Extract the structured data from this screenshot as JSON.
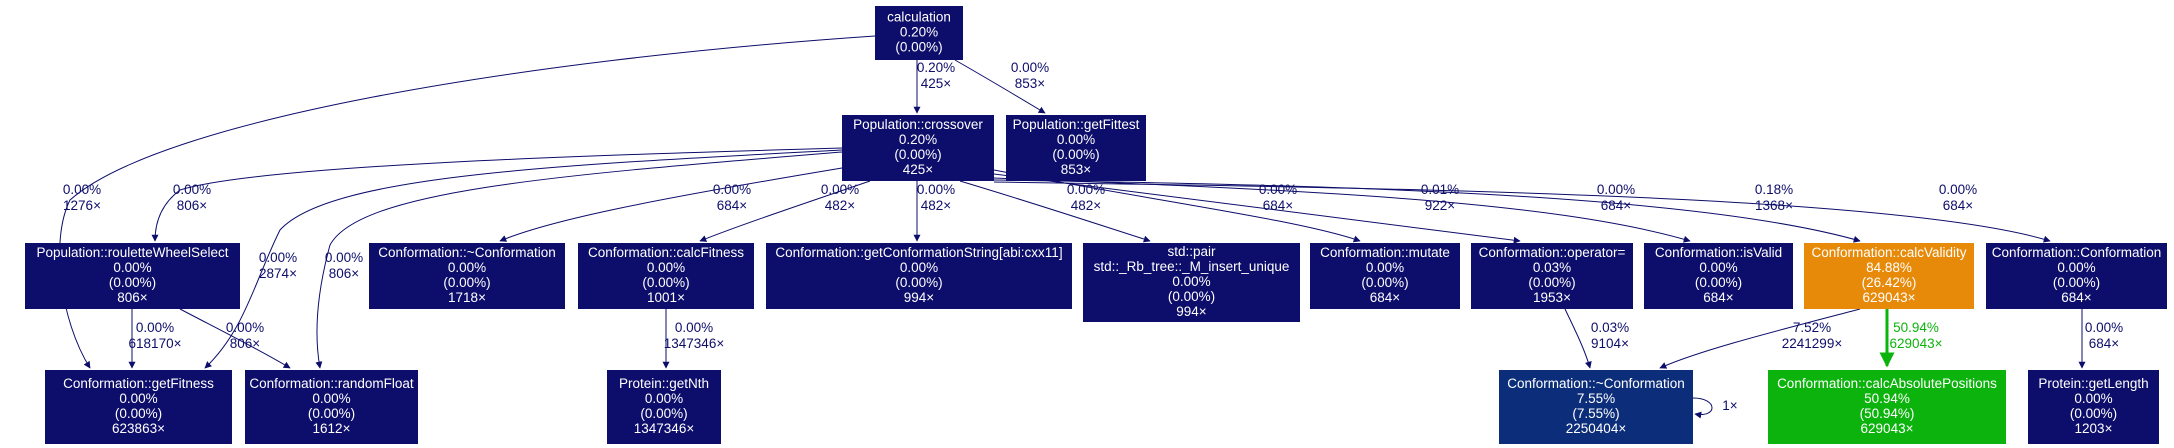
{
  "colors": {
    "cold": "#0d0d6b",
    "warm_blue": "#0c2e7a",
    "orange": "#e88a09",
    "green": "#0db30d",
    "edge_cold": "#0d0d6b",
    "edge_green": "#0db30d"
  },
  "nodes": [
    {
      "id": "calculation",
      "lines": [
        "calculation",
        "0.20%",
        "(0.00%)"
      ],
      "color": "cold"
    },
    {
      "id": "crossover",
      "lines": [
        "Population::crossover",
        "0.20%",
        "(0.00%)",
        "425×"
      ],
      "color": "cold"
    },
    {
      "id": "getFittest",
      "lines": [
        "Population::getFittest",
        "0.00%",
        "(0.00%)",
        "853×"
      ],
      "color": "cold"
    },
    {
      "id": "roulette",
      "lines": [
        "Population::rouletteWheelSelect",
        "0.00%",
        "(0.00%)",
        "806×"
      ],
      "color": "cold"
    },
    {
      "id": "destructor1",
      "lines": [
        "Conformation::~Conformation",
        "0.00%",
        "(0.00%)",
        "1718×"
      ],
      "color": "cold"
    },
    {
      "id": "calcFitness",
      "lines": [
        "Conformation::calcFitness",
        "0.00%",
        "(0.00%)",
        "1001×"
      ],
      "color": "cold"
    },
    {
      "id": "getConfString",
      "lines": [
        "Conformation::getConformationString[abi:cxx11]",
        "0.00%",
        "(0.00%)",
        "994×"
      ],
      "color": "cold"
    },
    {
      "id": "stdpair",
      "lines": [
        "std::pair",
        "std::_Rb_tree::_M_insert_unique",
        "0.00%",
        "(0.00%)",
        "994×"
      ],
      "color": "cold"
    },
    {
      "id": "mutate",
      "lines": [
        "Conformation::mutate",
        "0.00%",
        "(0.00%)",
        "684×"
      ],
      "color": "cold"
    },
    {
      "id": "operatorEq",
      "lines": [
        "Conformation::operator=",
        "0.03%",
        "(0.00%)",
        "1953×"
      ],
      "color": "cold"
    },
    {
      "id": "isValid",
      "lines": [
        "Conformation::isValid",
        "0.00%",
        "(0.00%)",
        "684×"
      ],
      "color": "cold"
    },
    {
      "id": "calcValidity",
      "lines": [
        "Conformation::calcValidity",
        "84.88%",
        "(26.42%)",
        "629043×"
      ],
      "color": "orange"
    },
    {
      "id": "ctor",
      "lines": [
        "Conformation::Conformation",
        "0.00%",
        "(0.00%)",
        "684×"
      ],
      "color": "cold"
    },
    {
      "id": "getFitness",
      "lines": [
        "Conformation::getFitness",
        "0.00%",
        "(0.00%)",
        "623863×"
      ],
      "color": "cold"
    },
    {
      "id": "randomFloat",
      "lines": [
        "Conformation::randomFloat",
        "0.00%",
        "(0.00%)",
        "1612×"
      ],
      "color": "cold"
    },
    {
      "id": "getNth",
      "lines": [
        "Protein::getNth",
        "0.00%",
        "(0.00%)",
        "1347346×"
      ],
      "color": "cold"
    },
    {
      "id": "destructor2",
      "lines": [
        "Conformation::~Conformation",
        "7.55%",
        "(7.55%)",
        "2250404×"
      ],
      "color": "warm_blue"
    },
    {
      "id": "calcAbsPos",
      "lines": [
        "Conformation::calcAbsolutePositions",
        "50.94%",
        "(50.94%)",
        "629043×"
      ],
      "color": "green"
    },
    {
      "id": "getLength",
      "lines": [
        "Protein::getLength",
        "0.00%",
        "(0.00%)",
        "1203×"
      ],
      "color": "cold"
    }
  ],
  "edges": [
    {
      "id": "calc-crossover",
      "lines": [
        "0.20%",
        "425×"
      ]
    },
    {
      "id": "calc-getFittest",
      "lines": [
        "0.00%",
        "853×"
      ]
    },
    {
      "id": "calc-getFitness",
      "lines": [
        "0.00%",
        "1276×"
      ]
    },
    {
      "id": "cross-roulette",
      "lines": [
        "0.00%",
        "806×"
      ]
    },
    {
      "id": "cross-getFitness",
      "lines": [
        "0.00%",
        "2874×"
      ]
    },
    {
      "id": "cross-randomFloat",
      "lines": [
        "0.00%",
        "806×"
      ]
    },
    {
      "id": "cross-destructor1",
      "lines": [
        "0.00%",
        "684×"
      ]
    },
    {
      "id": "cross-calcFitness",
      "lines": [
        "0.00%",
        "482×"
      ]
    },
    {
      "id": "cross-getConfString",
      "lines": [
        "0.00%",
        "482×"
      ]
    },
    {
      "id": "cross-stdpair",
      "lines": [
        "0.00%",
        "482×"
      ]
    },
    {
      "id": "cross-mutate",
      "lines": [
        "0.00%",
        "684×"
      ]
    },
    {
      "id": "cross-operatorEq",
      "lines": [
        "0.01%",
        "922×"
      ]
    },
    {
      "id": "cross-isValid",
      "lines": [
        "0.00%",
        "684×"
      ]
    },
    {
      "id": "cross-calcValidity",
      "lines": [
        "0.18%",
        "1368×"
      ]
    },
    {
      "id": "cross-ctor",
      "lines": [
        "0.00%",
        "684×"
      ]
    },
    {
      "id": "roulette-getFitness",
      "lines": [
        "0.00%",
        "618170×"
      ]
    },
    {
      "id": "roulette-randomFloat",
      "lines": [
        "0.00%",
        "806×"
      ]
    },
    {
      "id": "calcFitness-getNth",
      "lines": [
        "0.00%",
        "1347346×"
      ]
    },
    {
      "id": "operatorEq-destructor2",
      "lines": [
        "0.03%",
        "9104×"
      ]
    },
    {
      "id": "calcValidity-destructor2",
      "lines": [
        "7.52%",
        "2241299×"
      ]
    },
    {
      "id": "calcValidity-calcAbsPos",
      "lines": [
        "50.94%",
        "629043×"
      ]
    },
    {
      "id": "ctor-getLength",
      "lines": [
        "0.00%",
        "684×"
      ]
    },
    {
      "id": "destructor2-self",
      "lines": [
        "1×"
      ]
    }
  ]
}
